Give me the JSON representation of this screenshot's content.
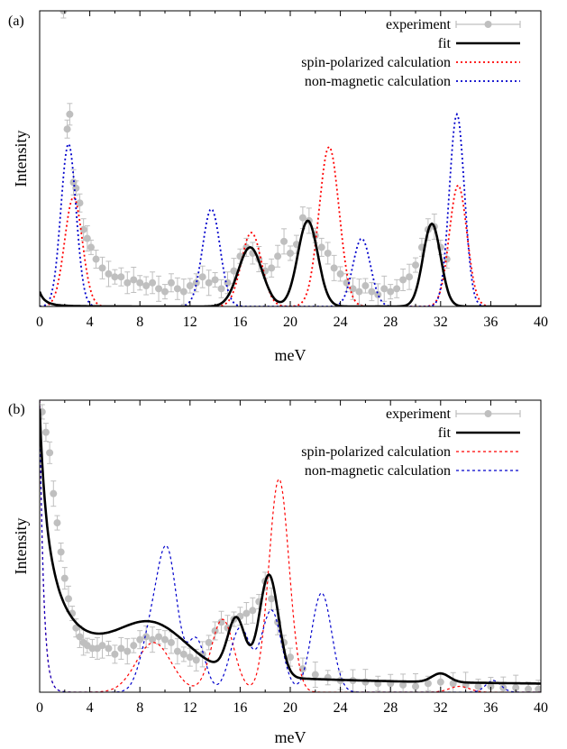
{
  "chart_data": [
    {
      "type": "line",
      "panel_label": "(a)",
      "xlabel": "meV",
      "ylabel": "Intensity",
      "xlim": [
        0,
        40
      ],
      "ylim": [
        0,
        1
      ],
      "x_ticks": [
        "0",
        "4",
        "8",
        "12",
        "16",
        "20",
        "24",
        "28",
        "32",
        "36",
        "40"
      ],
      "legend_position": "top-right",
      "series": [
        {
          "name": "experiment",
          "style": "points with error bars",
          "color": "#bfbfbf",
          "points": [
            [
              1.9,
              1.0
            ],
            [
              2.2,
              0.6
            ],
            [
              2.4,
              0.65
            ],
            [
              2.7,
              0.42
            ],
            [
              2.9,
              0.4
            ],
            [
              3.2,
              0.35
            ],
            [
              3.5,
              0.26
            ],
            [
              3.8,
              0.23
            ],
            [
              4.1,
              0.2
            ],
            [
              4.5,
              0.16
            ],
            [
              5.0,
              0.13
            ],
            [
              5.5,
              0.11
            ],
            [
              6.0,
              0.1
            ],
            [
              6.5,
              0.1
            ],
            [
              7.0,
              0.08
            ],
            [
              7.5,
              0.09
            ],
            [
              8.0,
              0.08
            ],
            [
              8.5,
              0.07
            ],
            [
              9.0,
              0.08
            ],
            [
              9.5,
              0.06
            ],
            [
              10.0,
              0.05
            ],
            [
              10.5,
              0.08
            ],
            [
              11.0,
              0.06
            ],
            [
              11.5,
              0.05
            ],
            [
              12.0,
              0.07
            ],
            [
              12.5,
              0.08
            ],
            [
              13.0,
              0.1
            ],
            [
              13.5,
              0.08
            ],
            [
              14.0,
              0.09
            ],
            [
              14.5,
              0.06
            ],
            [
              15.0,
              0.08
            ],
            [
              15.5,
              0.12
            ],
            [
              16.0,
              0.17
            ],
            [
              16.5,
              0.2
            ],
            [
              17.0,
              0.18
            ],
            [
              17.5,
              0.16
            ],
            [
              18.0,
              0.12
            ],
            [
              18.5,
              0.13
            ],
            [
              19.0,
              0.17
            ],
            [
              19.5,
              0.22
            ],
            [
              20.0,
              0.18
            ],
            [
              20.5,
              0.21
            ],
            [
              21.0,
              0.3
            ],
            [
              21.5,
              0.29
            ],
            [
              22.0,
              0.24
            ],
            [
              22.5,
              0.2
            ],
            [
              23.0,
              0.18
            ],
            [
              23.5,
              0.13
            ],
            [
              24.0,
              0.11
            ],
            [
              24.5,
              0.08
            ],
            [
              25.0,
              0.06
            ],
            [
              25.5,
              0.05
            ],
            [
              26.0,
              0.07
            ],
            [
              26.5,
              0.05
            ],
            [
              27.0,
              0.04
            ],
            [
              27.5,
              0.06
            ],
            [
              28.0,
              0.05
            ],
            [
              28.5,
              0.06
            ],
            [
              29.0,
              0.09
            ],
            [
              29.5,
              0.1
            ],
            [
              30.0,
              0.14
            ],
            [
              30.5,
              0.2
            ],
            [
              31.0,
              0.26
            ],
            [
              31.5,
              0.27
            ],
            [
              32.0,
              0.2
            ],
            [
              32.5,
              0.16
            ]
          ]
        },
        {
          "name": "fit",
          "style": "solid thick",
          "color": "#000000"
        },
        {
          "name": "spin-polarized calculation",
          "style": "dotted",
          "color": "#ff0000"
        },
        {
          "name": "non-magnetic calculation",
          "style": "dotted",
          "color": "#0000cc"
        }
      ],
      "curves": {
        "fit": {
          "base": [
            [
              0.05,
              0.8,
              3
            ],
            [
              0.0,
              0.0,
              1
            ]
          ],
          "peaks": [
            [
              16.8,
              0.2,
              0.95
            ],
            [
              21.4,
              0.29,
              0.8
            ],
            [
              31.3,
              0.28,
              0.7
            ]
          ]
        },
        "spin-polarized calculation": {
          "edge": 0.0,
          "peaks": [
            [
              2.7,
              0.37,
              0.7
            ],
            [
              16.9,
              0.25,
              0.8
            ],
            [
              23.1,
              0.54,
              0.8
            ],
            [
              33.4,
              0.41,
              0.7
            ]
          ]
        },
        "non-magnetic calculation": {
          "edge": 0.0,
          "peaks": [
            [
              2.3,
              0.55,
              0.6
            ],
            [
              13.7,
              0.33,
              0.7
            ],
            [
              25.7,
              0.23,
              0.7
            ],
            [
              33.3,
              0.65,
              0.6
            ]
          ]
        }
      }
    },
    {
      "type": "line",
      "panel_label": "(b)",
      "xlabel": "meV",
      "ylabel": "Intensity",
      "xlim": [
        0,
        40
      ],
      "ylim": [
        0,
        1
      ],
      "x_ticks": [
        "0",
        "4",
        "8",
        "12",
        "16",
        "20",
        "24",
        "28",
        "32",
        "36",
        "40"
      ],
      "legend_position": "top-right",
      "series": [
        {
          "name": "experiment",
          "style": "points with error bars",
          "color": "#bfbfbf",
          "points": [
            [
              0.2,
              0.96
            ],
            [
              0.5,
              0.89
            ],
            [
              0.8,
              0.82
            ],
            [
              1.1,
              0.68
            ],
            [
              1.4,
              0.58
            ],
            [
              1.7,
              0.48
            ],
            [
              2.0,
              0.39
            ],
            [
              2.3,
              0.32
            ],
            [
              2.6,
              0.27
            ],
            [
              2.9,
              0.22
            ],
            [
              3.2,
              0.19
            ],
            [
              3.5,
              0.17
            ],
            [
              3.8,
              0.16
            ],
            [
              4.2,
              0.15
            ],
            [
              4.6,
              0.15
            ],
            [
              5.0,
              0.16
            ],
            [
              5.5,
              0.15
            ],
            [
              6.0,
              0.13
            ],
            [
              6.5,
              0.15
            ],
            [
              7.0,
              0.14
            ],
            [
              7.5,
              0.16
            ],
            [
              8.0,
              0.18
            ],
            [
              8.5,
              0.19
            ],
            [
              9.0,
              0.18
            ],
            [
              9.5,
              0.19
            ],
            [
              10.0,
              0.18
            ],
            [
              10.5,
              0.17
            ],
            [
              11.0,
              0.14
            ],
            [
              11.5,
              0.13
            ],
            [
              12.0,
              0.12
            ],
            [
              12.5,
              0.11
            ],
            [
              13.0,
              0.13
            ],
            [
              13.5,
              0.17
            ],
            [
              14.0,
              0.21
            ],
            [
              14.5,
              0.24
            ],
            [
              15.0,
              0.22
            ],
            [
              15.5,
              0.25
            ],
            [
              16.0,
              0.26
            ],
            [
              16.5,
              0.27
            ],
            [
              17.0,
              0.28
            ],
            [
              17.5,
              0.31
            ],
            [
              18.0,
              0.38
            ],
            [
              18.5,
              0.32
            ],
            [
              19.0,
              0.24
            ],
            [
              19.5,
              0.17
            ],
            [
              20.0,
              0.12
            ],
            [
              21.0,
              0.08
            ],
            [
              22.0,
              0.06
            ],
            [
              23.0,
              0.05
            ],
            [
              24.0,
              0.04
            ],
            [
              25.0,
              0.04
            ],
            [
              26.0,
              0.035
            ],
            [
              27.0,
              0.03
            ],
            [
              28.0,
              0.03
            ],
            [
              29.0,
              0.025
            ],
            [
              30.0,
              0.02
            ],
            [
              31.0,
              0.03
            ],
            [
              32.0,
              0.035
            ],
            [
              33.0,
              0.03
            ],
            [
              34.0,
              0.025
            ],
            [
              35.0,
              0.02
            ],
            [
              36.0,
              0.02
            ],
            [
              37.0,
              0.015
            ],
            [
              38.0,
              0.015
            ],
            [
              39.0,
              0.01
            ],
            [
              39.8,
              0.01
            ]
          ]
        },
        {
          "name": "fit",
          "style": "solid thick",
          "color": "#000000"
        },
        {
          "name": "spin-polarized calculation",
          "style": "dashed thin",
          "color": "#ff0000"
        },
        {
          "name": "non-magnetic calculation",
          "style": "dashed thin",
          "color": "#0000cc"
        }
      ],
      "curves": {
        "fit": {
          "base": [
            [
              0.96,
              1.2,
              1
            ],
            [
              0.01,
              0.0,
              1
            ]
          ],
          "peaks": [
            [
              9.0,
              0.15,
              2.8
            ],
            [
              15.7,
              0.19,
              0.7
            ],
            [
              18.3,
              0.35,
              0.75
            ],
            [
              32.0,
              0.03,
              0.7
            ]
          ]
        },
        "spin-polarized calculation": {
          "edge": 1.0,
          "peaks": [
            [
              9.1,
              0.17,
              1.4
            ],
            [
              14.6,
              0.25,
              0.9
            ],
            [
              19.1,
              0.73,
              0.8
            ],
            [
              33.5,
              0.02,
              0.8
            ]
          ]
        },
        "non-magnetic calculation": {
          "edge": 1.0,
          "peaks": [
            [
              8.8,
              0.17,
              0.8
            ],
            [
              10.2,
              0.46,
              0.8
            ],
            [
              12.5,
              0.18,
              0.7
            ],
            [
              16.0,
              0.22,
              0.8
            ],
            [
              18.5,
              0.28,
              0.8
            ],
            [
              22.5,
              0.34,
              0.8
            ],
            [
              36.2,
              0.04,
              0.6
            ]
          ]
        }
      }
    }
  ]
}
